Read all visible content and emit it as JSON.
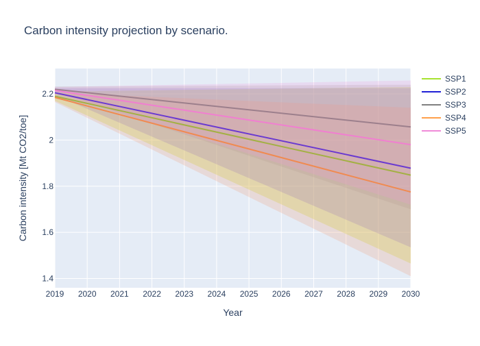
{
  "chart_data": {
    "type": "line",
    "title": "Carbon intensity projection by scenario.",
    "xlabel": "Year",
    "ylabel": "Carbon intensity [Mt CO2/toe]",
    "xlim": [
      2019,
      2030
    ],
    "ylim": [
      1.36,
      2.31
    ],
    "x_ticks": [
      2019,
      2020,
      2021,
      2022,
      2023,
      2024,
      2025,
      2026,
      2027,
      2028,
      2029,
      2030
    ],
    "y_ticks": [
      1.4,
      1.6,
      1.8,
      2,
      2.2
    ],
    "y_tick_labels": [
      "1.4",
      "1.6",
      "1.8",
      "2",
      "2.2"
    ],
    "grid": true,
    "legend_position": "top-right",
    "plot_background": "#e5ecf6",
    "series": [
      {
        "name": "SSP1",
        "legend_color": "#a6e22e",
        "line_color": "#a3b043",
        "band_fill": "rgba(205,220,60,0.30)",
        "x": [
          2019,
          2030
        ],
        "mid": [
          2.19,
          1.848
        ],
        "lower": [
          2.17,
          1.465
        ],
        "upper": [
          2.21,
          2.23
        ]
      },
      {
        "name": "SSP2",
        "legend_color": "#1f1fd6",
        "line_color": "#6a3ad0",
        "band_fill": "rgba(120,100,210,0.22)",
        "x": [
          2019,
          2030
        ],
        "mid": [
          2.205,
          1.878
        ],
        "lower": [
          2.195,
          1.535
        ],
        "upper": [
          2.225,
          2.225
        ]
      },
      {
        "name": "SSP3",
        "legend_color": "#7f7f7f",
        "line_color": "#9c7f8c",
        "band_fill": "rgba(160,150,150,0.22)",
        "x": [
          2019,
          2030
        ],
        "mid": [
          2.22,
          2.057
        ],
        "lower": [
          2.21,
          1.7
        ],
        "upper": [
          2.232,
          2.24
        ]
      },
      {
        "name": "SSP4",
        "legend_color": "#ff9f4a",
        "line_color": "#f08a50",
        "band_fill": "rgba(240,150,110,0.22)",
        "x": [
          2019,
          2030
        ],
        "mid": [
          2.185,
          1.775
        ],
        "lower": [
          2.165,
          1.41
        ],
        "upper": [
          2.205,
          2.14
        ]
      },
      {
        "name": "SSP5",
        "legend_color": "#f08ad8",
        "line_color": "#f07fd0",
        "band_fill": "rgba(240,150,220,0.22)",
        "x": [
          2019,
          2030
        ],
        "mid": [
          2.215,
          1.98
        ],
        "lower": [
          2.205,
          1.72
        ],
        "upper": [
          2.23,
          2.258
        ]
      }
    ]
  }
}
